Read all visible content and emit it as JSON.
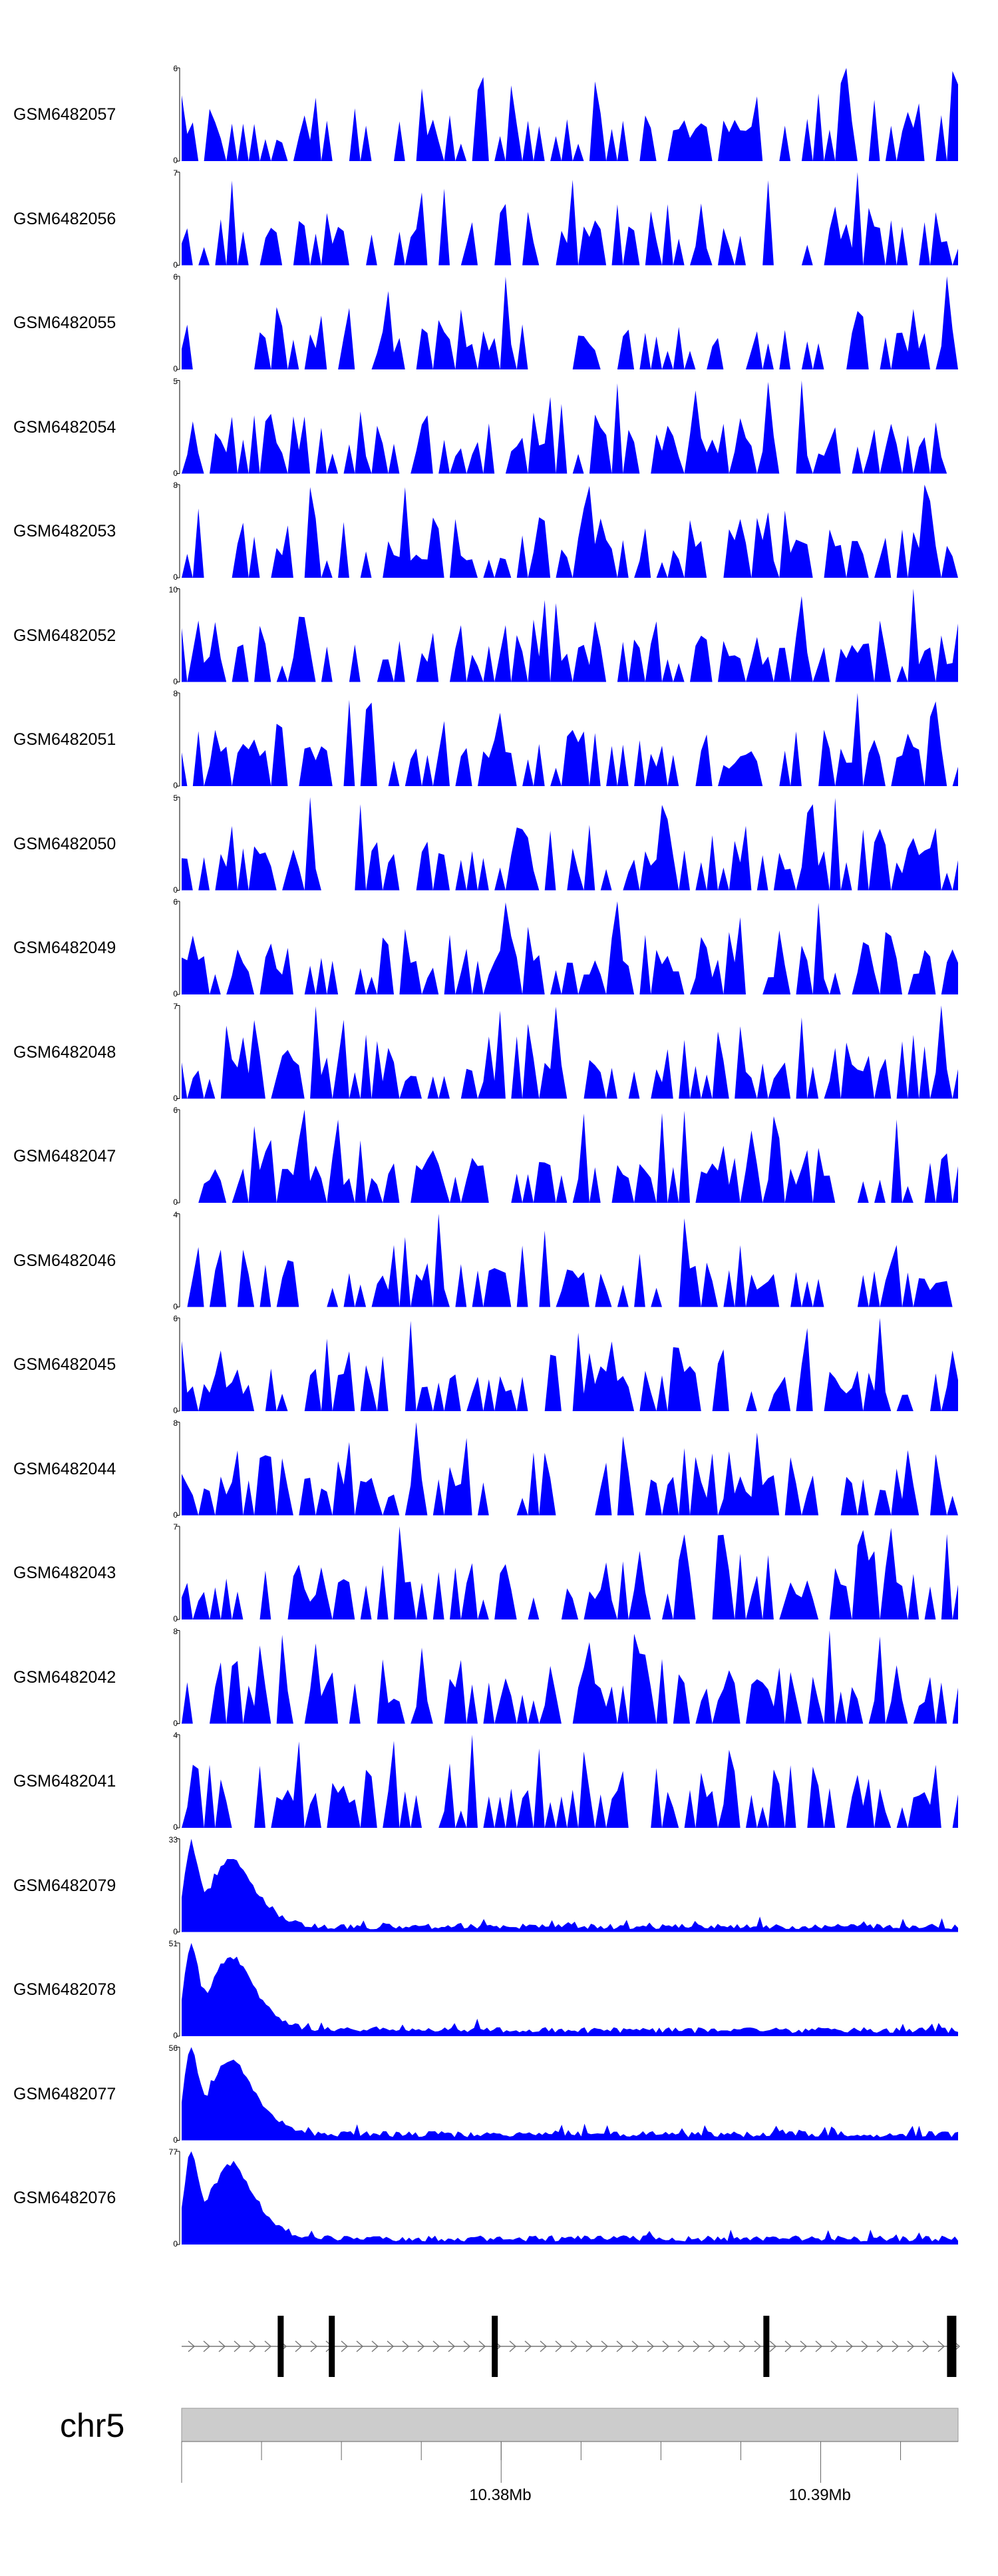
{
  "chart_data": {
    "type": "area",
    "chromosome": "chr5",
    "x_range_mb": [
      10.37,
      10.3943
    ],
    "x_ticks": [
      {
        "value": 10.38,
        "label": "10.38Mb"
      },
      {
        "value": 10.39,
        "label": "10.39Mb"
      }
    ],
    "series_color": "#0000ff",
    "tracks": [
      {
        "name": "GSM6482057",
        "ymax": 6,
        "pattern": "sparse",
        "seed": 57
      },
      {
        "name": "GSM6482056",
        "ymax": 7,
        "pattern": "sparse",
        "seed": 56
      },
      {
        "name": "GSM6482055",
        "ymax": 6,
        "pattern": "sparse",
        "seed": 55
      },
      {
        "name": "GSM6482054",
        "ymax": 5,
        "pattern": "sparse",
        "seed": 54
      },
      {
        "name": "GSM6482053",
        "ymax": 8,
        "pattern": "sparse",
        "seed": 53
      },
      {
        "name": "GSM6482052",
        "ymax": 10,
        "pattern": "sparse",
        "seed": 52
      },
      {
        "name": "GSM6482051",
        "ymax": 8,
        "pattern": "sparse",
        "seed": 51
      },
      {
        "name": "GSM6482050",
        "ymax": 5,
        "pattern": "sparse",
        "seed": 50
      },
      {
        "name": "GSM6482049",
        "ymax": 6,
        "pattern": "sparse",
        "seed": 49
      },
      {
        "name": "GSM6482048",
        "ymax": 7,
        "pattern": "sparse",
        "seed": 48
      },
      {
        "name": "GSM6482047",
        "ymax": 6,
        "pattern": "sparse",
        "seed": 47
      },
      {
        "name": "GSM6482046",
        "ymax": 4,
        "pattern": "sparse",
        "seed": 46
      },
      {
        "name": "GSM6482045",
        "ymax": 6,
        "pattern": "sparse",
        "seed": 45
      },
      {
        "name": "GSM6482044",
        "ymax": 8,
        "pattern": "sparse",
        "seed": 44
      },
      {
        "name": "GSM6482043",
        "ymax": 7,
        "pattern": "sparse",
        "seed": 43
      },
      {
        "name": "GSM6482042",
        "ymax": 8,
        "pattern": "sparse",
        "seed": 42
      },
      {
        "name": "GSM6482041",
        "ymax": 4,
        "pattern": "sparse",
        "seed": 41
      },
      {
        "name": "GSM6482079",
        "ymax": 33,
        "pattern": "peak",
        "seed": 79
      },
      {
        "name": "GSM6482078",
        "ymax": 51,
        "pattern": "peak",
        "seed": 78
      },
      {
        "name": "GSM6482077",
        "ymax": 56,
        "pattern": "peak",
        "seed": 77
      },
      {
        "name": "GSM6482076",
        "ymax": 77,
        "pattern": "peak",
        "seed": 76
      }
    ],
    "gene_model": {
      "strand": "+",
      "exons_mb": [
        10.3731,
        10.3747,
        10.3798,
        10.3883,
        10.3941
      ]
    }
  }
}
